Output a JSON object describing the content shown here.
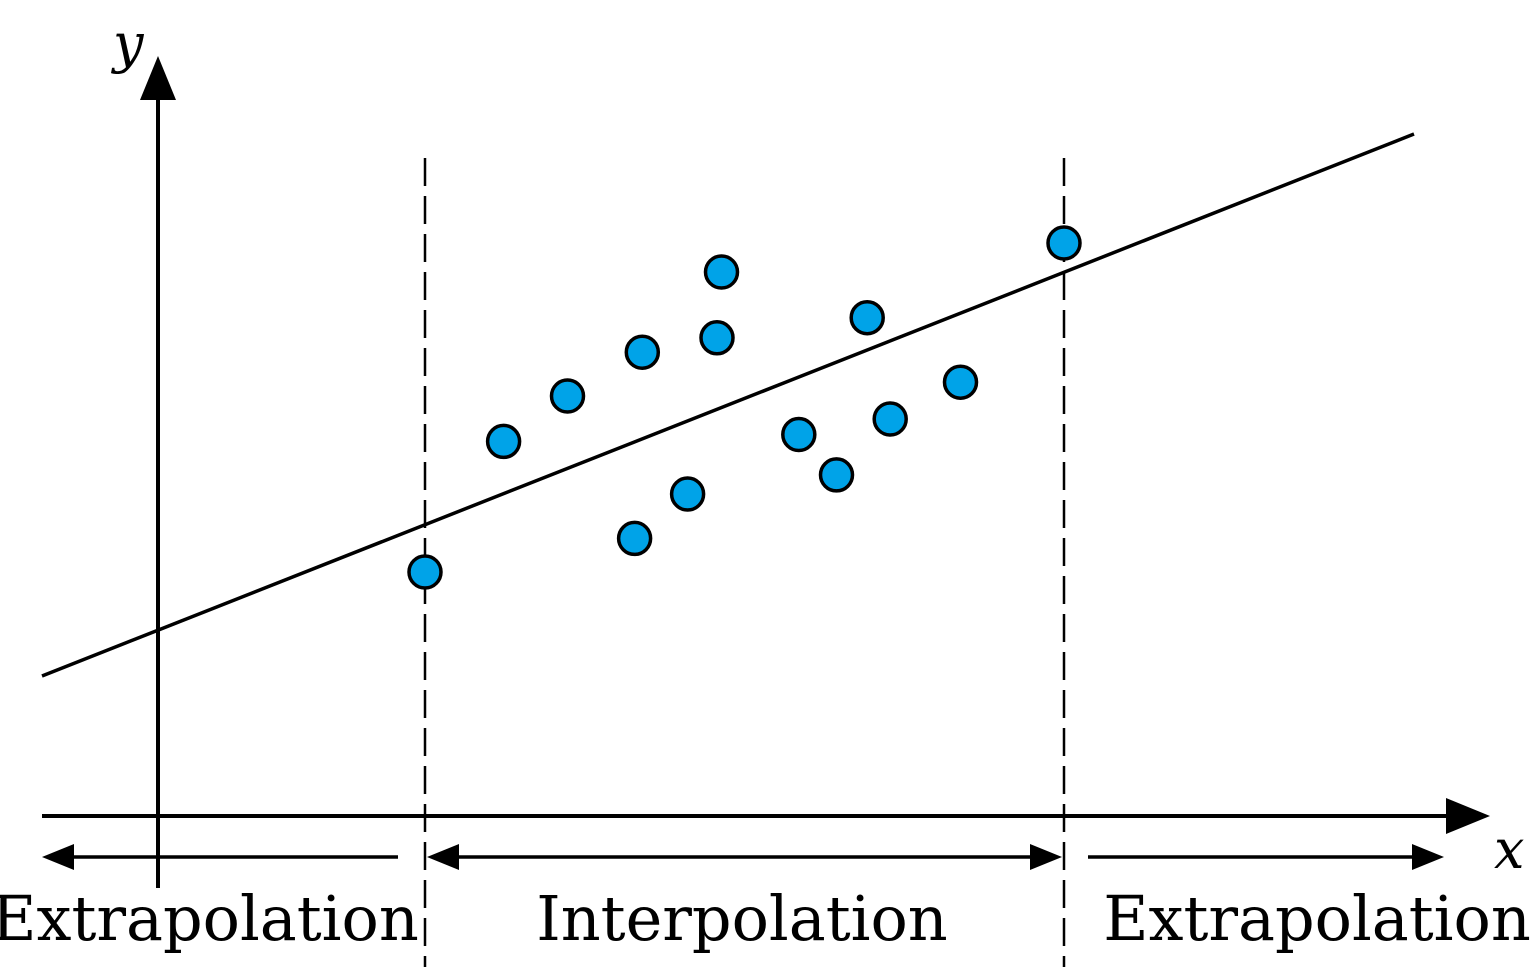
{
  "labels": {
    "x_axis": "x",
    "y_axis": "y",
    "left_region": "Extrapolation",
    "middle_region": "Interpolation",
    "right_region": "Extrapolation"
  },
  "colors": {
    "point_fill": "#00A3E8",
    "ink": "#000000"
  },
  "chart_data": {
    "type": "scatter",
    "points": [
      {
        "x": 0.0,
        "y": 0.0
      },
      {
        "x": 0.123,
        "y": 0.397
      },
      {
        "x": 0.223,
        "y": 0.535
      },
      {
        "x": 0.328,
        "y": 0.102
      },
      {
        "x": 0.34,
        "y": 0.668
      },
      {
        "x": 0.411,
        "y": 0.237
      },
      {
        "x": 0.457,
        "y": 0.712
      },
      {
        "x": 0.464,
        "y": 0.912
      },
      {
        "x": 0.585,
        "y": 0.418
      },
      {
        "x": 0.644,
        "y": 0.295
      },
      {
        "x": 0.692,
        "y": 0.773
      },
      {
        "x": 0.728,
        "y": 0.465
      },
      {
        "x": 0.838,
        "y": 0.577
      },
      {
        "x": 1.0,
        "y": 1.0
      }
    ],
    "fit_line": {
      "slope": 0.612,
      "intercept": 0.143
    },
    "data_range": {
      "x_min": 0.0,
      "x_max": 1.0
    },
    "xlim": [
      -0.6,
      1.52
    ],
    "ylim": [
      -0.76,
      1.0
    ]
  }
}
